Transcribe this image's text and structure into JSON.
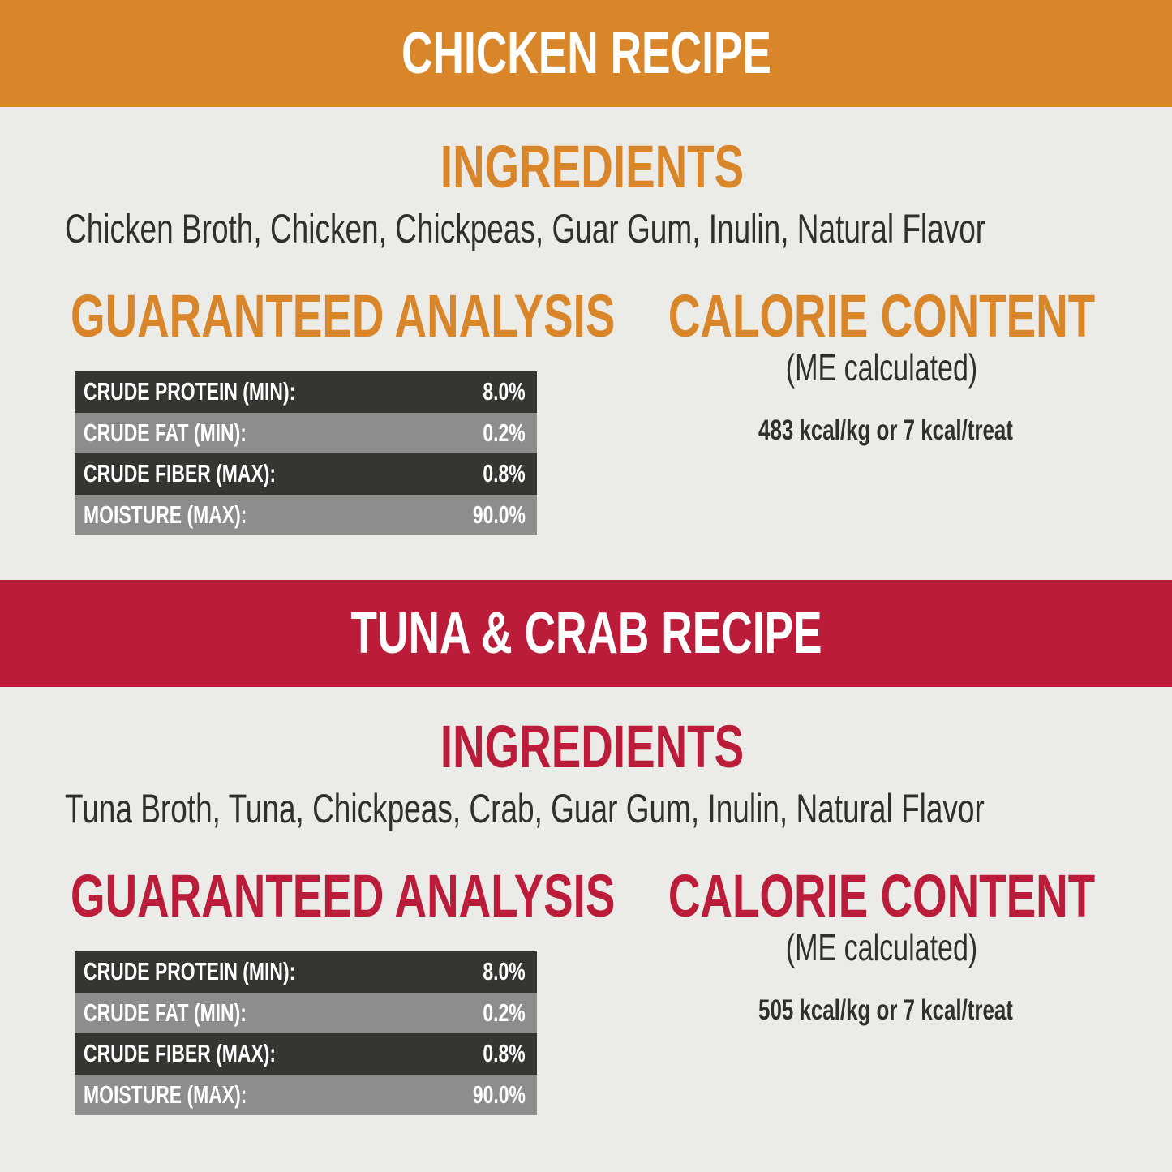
{
  "sections": [
    {
      "title": "CHICKEN RECIPE",
      "ingredients_heading": "INGREDIENTS",
      "ingredients": "Chicken Broth, Chicken, Chickpeas, Guar Gum, Inulin, Natural Flavor",
      "analysis_heading": "GUARANTEED ANALYSIS",
      "analysis": [
        [
          "CRUDE PROTEIN (MIN):",
          "8.0%"
        ],
        [
          "CRUDE FAT (MIN):",
          "0.2%"
        ],
        [
          "CRUDE FIBER (MAX):",
          "0.8%"
        ],
        [
          "MOISTURE (MAX):",
          "90.0%"
        ]
      ],
      "calorie_heading": "CALORIE CONTENT",
      "calorie_note": "(ME calculated)",
      "calorie_content": "483 kcal/kg or 7 kcal/treat"
    },
    {
      "title": "TUNA & CRAB RECIPE",
      "ingredients_heading": "INGREDIENTS",
      "ingredients": "Tuna Broth, Tuna, Chickpeas, Crab, Guar Gum, Inulin, Natural Flavor",
      "analysis_heading": "GUARANTEED ANALYSIS",
      "analysis": [
        [
          "CRUDE PROTEIN (MIN):",
          "8.0%"
        ],
        [
          "CRUDE FAT (MIN):",
          "0.2%"
        ],
        [
          "CRUDE FIBER (MAX):",
          "0.8%"
        ],
        [
          "MOISTURE (MAX):",
          "90.0%"
        ]
      ],
      "calorie_heading": "CALORIE CONTENT",
      "calorie_note": "(ME calculated)",
      "calorie_content": "505 kcal/kg or 7 kcal/treat"
    }
  ]
}
